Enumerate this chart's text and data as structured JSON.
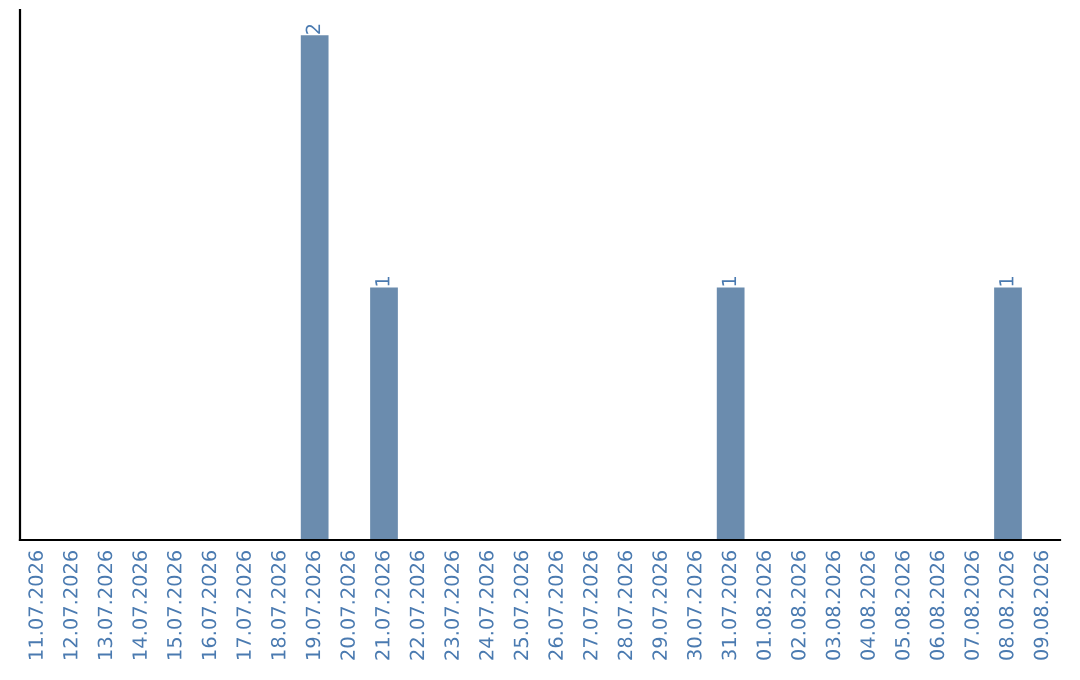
{
  "chart_data": {
    "type": "bar",
    "categories": [
      "11.07.2026",
      "12.07.2026",
      "13.07.2026",
      "14.07.2026",
      "15.07.2026",
      "16.07.2026",
      "17.07.2026",
      "18.07.2026",
      "19.07.2026",
      "20.07.2026",
      "21.07.2026",
      "22.07.2026",
      "23.07.2026",
      "24.07.2026",
      "25.07.2026",
      "26.07.2026",
      "27.07.2026",
      "28.07.2026",
      "29.07.2026",
      "30.07.2026",
      "31.07.2026",
      "01.08.2026",
      "02.08.2026",
      "03.08.2026",
      "04.08.2026",
      "05.08.2026",
      "06.08.2026",
      "07.08.2026",
      "08.08.2026",
      "09.08.2026"
    ],
    "values": [
      0,
      0,
      0,
      0,
      0,
      0,
      0,
      0,
      2,
      0,
      1,
      0,
      0,
      0,
      0,
      0,
      0,
      0,
      0,
      0,
      1,
      0,
      0,
      0,
      0,
      0,
      0,
      0,
      1,
      0
    ],
    "value_labels": [
      null,
      null,
      null,
      null,
      null,
      null,
      null,
      null,
      "2",
      null,
      "1",
      null,
      null,
      null,
      null,
      null,
      null,
      null,
      null,
      null,
      "1",
      null,
      null,
      null,
      null,
      null,
      null,
      null,
      "1",
      null
    ],
    "color": "#6b8cae",
    "ylim": [
      0,
      2.1
    ],
    "tick_labels": "x",
    "grid": false,
    "legend": false
  }
}
